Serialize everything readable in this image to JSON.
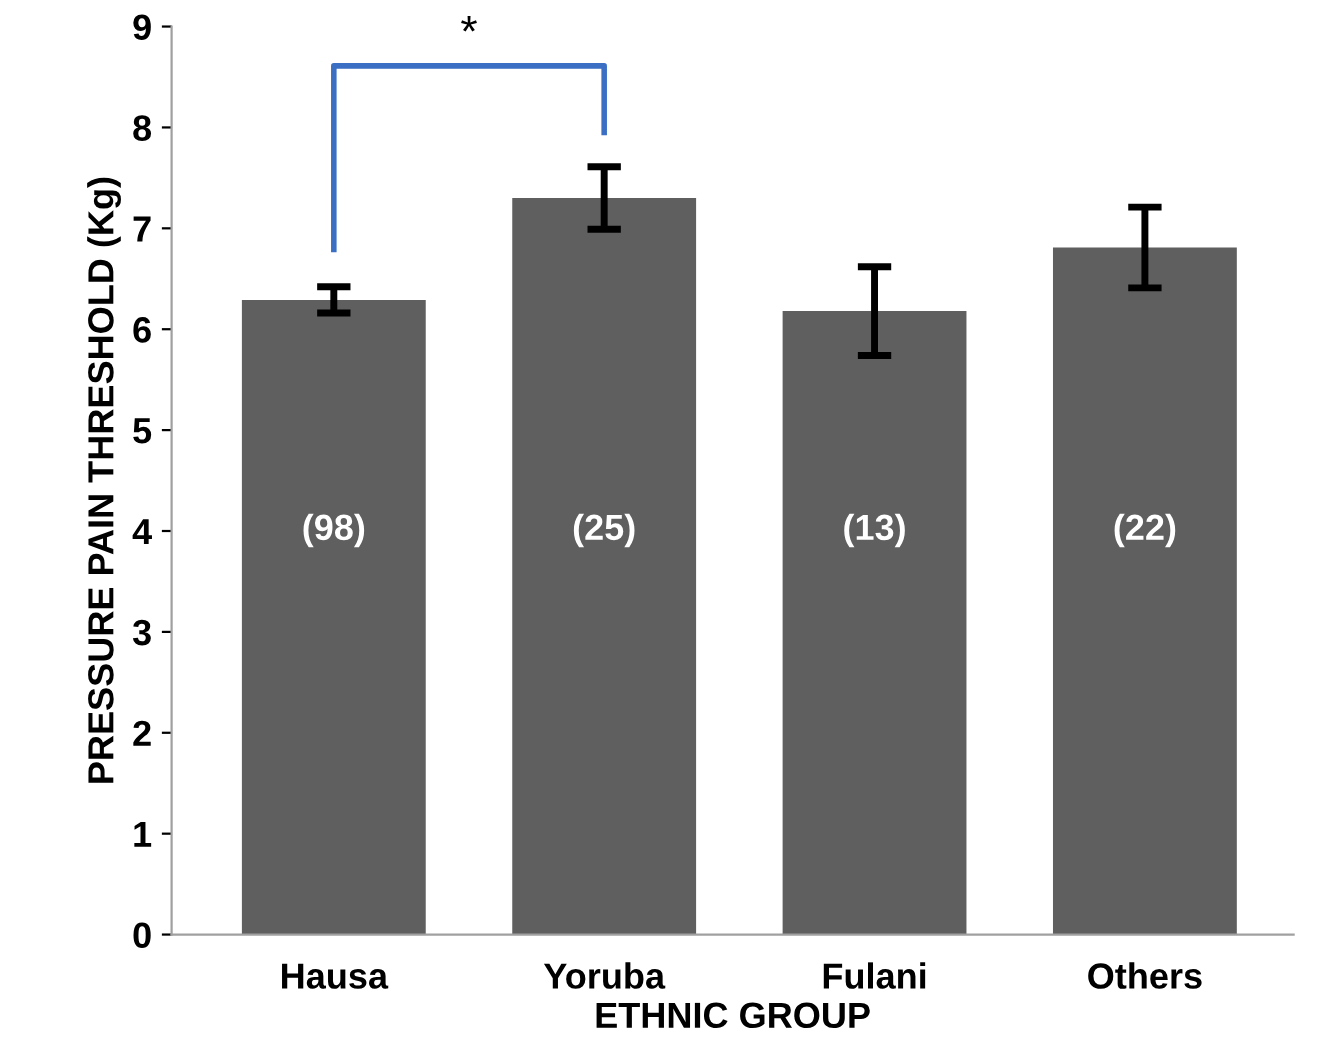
{
  "chart_data": {
    "type": "bar",
    "xlabel": "ETHNIC GROUP",
    "ylabel": "PRESSURE PAIN THRESHOLD (Kg)",
    "categories": [
      "Hausa",
      "Yoruba",
      "Fulani",
      "Others"
    ],
    "values": [
      6.29,
      7.3,
      6.18,
      6.81
    ],
    "errors": [
      0.13,
      0.31,
      0.44,
      0.4
    ],
    "color": "#5f5f5f",
    "ylim": [
      0,
      9
    ],
    "yticks": [
      0,
      1,
      2,
      3,
      4,
      5,
      6,
      7,
      8,
      9
    ],
    "grid": false,
    "legend": false,
    "annotations": [
      "(98)",
      "(25)",
      "(13)",
      "(22)",
      "*"
    ]
  }
}
